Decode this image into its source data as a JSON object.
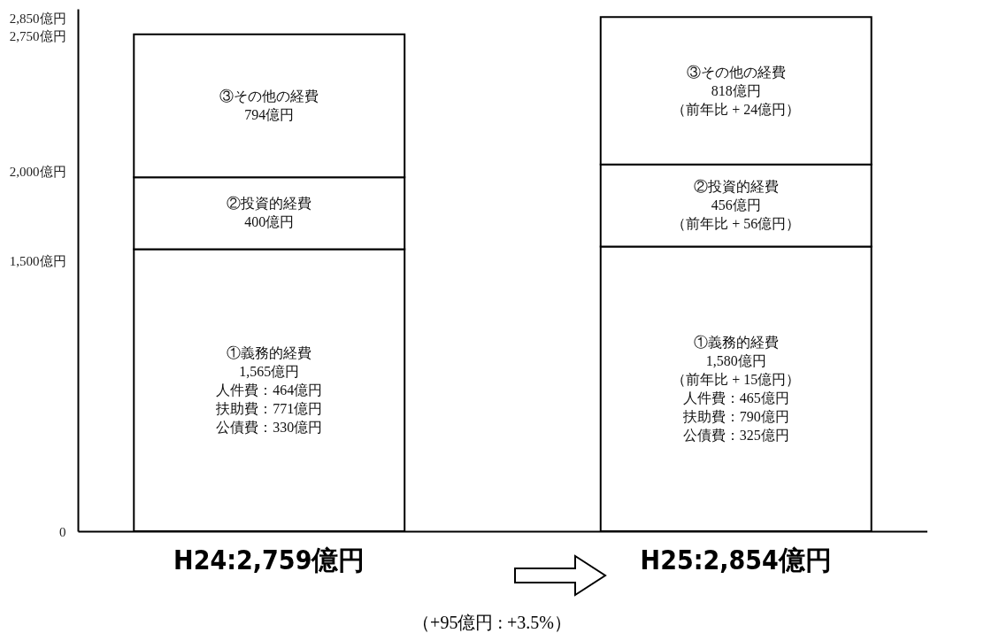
{
  "chart_data": {
    "type": "bar",
    "stacked": true,
    "categories": [
      "H24:2,759億円",
      "H25:2,854億円"
    ],
    "ylim": [
      0,
      2900
    ],
    "yticks": [
      0,
      {
        "value": 1500,
        "label": "1,500億円"
      },
      {
        "value": 2000,
        "label": "2,000億円"
      },
      {
        "value": 2750,
        "label": "2,750億円"
      },
      {
        "value": 2850,
        "label": "2,850億円"
      }
    ],
    "series": [
      {
        "name": "①義務的経費",
        "color": "#ffffff",
        "values": [
          1565,
          1580
        ],
        "value_labels": [
          [
            "1,565億円",
            "人件費：464億円",
            "扶助費：771億円",
            "公債費：330億円"
          ],
          [
            "1,580億円",
            "（前年比 + 15億円）",
            "人件費：465億円",
            "扶助費：790億円",
            "公債費：325億円"
          ]
        ]
      },
      {
        "name": "②投資的経費",
        "color": "#ffffff",
        "values": [
          400,
          456
        ],
        "value_labels": [
          [
            "400億円"
          ],
          [
            "456億円",
            "（前年比 + 56億円）"
          ]
        ]
      },
      {
        "name": "③その他の経費",
        "color": "#ffffff",
        "values": [
          794,
          818
        ],
        "value_labels": [
          [
            "794億円"
          ],
          [
            "818億円",
            "（前年比 + 24億円）"
          ]
        ]
      }
    ],
    "annotations": [
      "（+95億円 : +3.5%）"
    ]
  }
}
